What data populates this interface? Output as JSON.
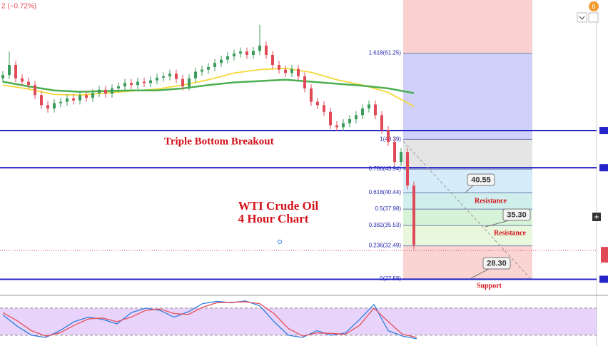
{
  "header": {
    "change": "2 (−0.72%)",
    "badge": "6"
  },
  "chart_data": [
    {
      "type": "candlestick",
      "ylim": [
        25.1,
        69.2
      ],
      "up_color": "#3c9b5c",
      "down_color": "#e04a57",
      "open": [
        57.5,
        58,
        59.5,
        57.5,
        57,
        56.5,
        55,
        53.5,
        53,
        53.8,
        54,
        54.5,
        54.2,
        55,
        54.6,
        55.3,
        55.8,
        55.2,
        56,
        56.3,
        56.8,
        56.5,
        57,
        56.8,
        57.2,
        57.6,
        57.8,
        58.2,
        57.4,
        56.3,
        57.5,
        58.5,
        58.8,
        59.2,
        59.8,
        60.3,
        60.8,
        61.2,
        61.5,
        61,
        61.6,
        62.4,
        61,
        59.5,
        58.8,
        58.3,
        58.9,
        57.8,
        56,
        54,
        53.5,
        52.5,
        50.5,
        50.2,
        50.8,
        51.4,
        52,
        53,
        53.6,
        52,
        49.8,
        48,
        45,
        46.5,
        41.5
      ],
      "high": [
        58.6,
        61.5,
        60.1,
        58.1,
        57.6,
        57.1,
        55.6,
        54.1,
        54.4,
        54.6,
        55.1,
        55.1,
        55.6,
        55.6,
        55.9,
        56.4,
        56.4,
        56.6,
        56.9,
        57.4,
        57.4,
        57.6,
        57.6,
        57.8,
        58.2,
        58.4,
        58.8,
        58.8,
        58,
        58.1,
        59.1,
        59.4,
        59.8,
        60.4,
        60.9,
        61.4,
        61.8,
        62.1,
        62.1,
        62.2,
        65.5,
        63,
        61.6,
        60.1,
        59.4,
        59.5,
        59.5,
        58.4,
        56.6,
        54.6,
        54.1,
        53.1,
        51.1,
        51.4,
        52,
        52.6,
        53.6,
        54.2,
        54.2,
        52.6,
        50.4,
        48.6,
        47.1,
        47.1,
        42.1
      ],
      "low": [
        56.9,
        57.4,
        56.9,
        56.4,
        55.9,
        54.4,
        52.9,
        52.4,
        52.4,
        53.2,
        53.4,
        53.6,
        53.6,
        54,
        54,
        54.7,
        54.6,
        54.6,
        55.4,
        55.7,
        55.9,
        55.9,
        56.2,
        56.2,
        56.6,
        57,
        57.2,
        56.8,
        55.7,
        55.7,
        56.9,
        57.9,
        58.2,
        58.6,
        59.2,
        59.7,
        60.2,
        60.6,
        60.4,
        60.4,
        61,
        60.4,
        58.9,
        58.2,
        57.7,
        57.7,
        57.2,
        55.4,
        53.4,
        52.9,
        51.9,
        49.9,
        49.6,
        49.6,
        50.2,
        50.8,
        51.4,
        52.4,
        51.4,
        49.2,
        47.4,
        44.4,
        44.4,
        40.9,
        32
      ],
      "close": [
        58,
        59.5,
        57.5,
        57,
        56.5,
        55,
        53.5,
        53,
        53.8,
        54,
        54.5,
        54.2,
        55,
        54.6,
        55.3,
        55.8,
        55.2,
        56,
        56.3,
        56.8,
        56.5,
        57,
        56.8,
        57.2,
        57.6,
        57.8,
        58.2,
        57.4,
        56.3,
        57.5,
        58.5,
        58.8,
        59.2,
        59.8,
        60.3,
        60.8,
        61.2,
        61.5,
        61,
        61.6,
        62.4,
        61,
        59.5,
        58.8,
        58.3,
        58.9,
        57.8,
        56,
        54,
        53.5,
        52.5,
        50.5,
        50.2,
        50.8,
        51.4,
        52,
        53,
        53.6,
        52,
        49.8,
        48,
        45,
        46.5,
        41.5,
        32.6
      ],
      "ma_x": [
        0,
        4,
        8,
        12,
        16,
        20,
        24,
        28,
        32,
        36,
        40,
        44,
        48,
        52,
        56,
        60,
        64
      ],
      "series": [
        {
          "color": "#f3d83a",
          "values": [
            56.5,
            55.9,
            55.1,
            55,
            55.3,
            55.6,
            55.9,
            56.5,
            57.3,
            58.3,
            58.8,
            59,
            58.4,
            57.3,
            56.5,
            55.4,
            53.3
          ]
        },
        {
          "color": "#4caf50",
          "values": [
            57,
            56.3,
            55.7,
            55.5,
            55.6,
            55.7,
            55.7,
            56,
            56.5,
            56.9,
            57.1,
            57.3,
            57,
            56.7,
            56.4,
            56,
            55.3
          ]
        }
      ],
      "levels": [
        49.7,
        44.15,
        27.5
      ],
      "level_color": "#2424c8",
      "last_price": 31.8,
      "fib_levels": [
        {
          "label": "1.618(61.25)",
          "value": 61.25
        },
        {
          "label": "1(48.39)",
          "value": 48.39
        },
        {
          "label": "0.786(43.94)",
          "value": 43.94
        },
        {
          "label": "0.618(40.44)",
          "value": 40.44
        },
        {
          "label": "0.5(37.98)",
          "value": 37.98
        },
        {
          "label": "0.382(35.53)",
          "value": 35.53
        },
        {
          "label": "0.236(32.49)",
          "value": 32.49
        },
        {
          "label": "0(27.58)",
          "value": 27.58
        }
      ],
      "fib_colors": [
        "rgba(240,120,120,0.35)",
        "rgba(120,120,240,0.35)",
        "rgba(170,170,170,0.3)",
        "rgba(140,200,240,0.35)",
        "rgba(120,210,200,0.35)",
        "rgba(140,220,140,0.35)",
        "rgba(200,235,170,0.4)",
        "rgba(240,130,130,0.35)"
      ],
      "annotations": [
        "Triple Bottom Breakout",
        "WTI Crude Oil",
        "4 Hour Chart"
      ],
      "callouts": [
        {
          "label": "40.55",
          "note": "Resistance"
        },
        {
          "label": "35.30",
          "note": "Resistance"
        },
        {
          "label": "28.30",
          "note": "Support"
        }
      ]
    },
    {
      "type": "stochastic",
      "ylim": [
        -4,
        102
      ],
      "bands": [
        20,
        80
      ],
      "series": [
        {
          "color": "#2f7fe0",
          "values": [
            65,
            40,
            20,
            15,
            30,
            50,
            60,
            55,
            45,
            70,
            80,
            75,
            60,
            72,
            90,
            95,
            92,
            96,
            85,
            50,
            20,
            15,
            30,
            20,
            25,
            55,
            88,
            30,
            18,
            12
          ]
        },
        {
          "color": "#e8505a",
          "values": [
            70,
            52,
            30,
            18,
            25,
            42,
            56,
            58,
            50,
            60,
            75,
            78,
            68,
            66,
            82,
            92,
            93,
            94,
            90,
            68,
            35,
            18,
            25,
            24,
            22,
            42,
            80,
            50,
            22,
            15
          ]
        }
      ]
    }
  ]
}
